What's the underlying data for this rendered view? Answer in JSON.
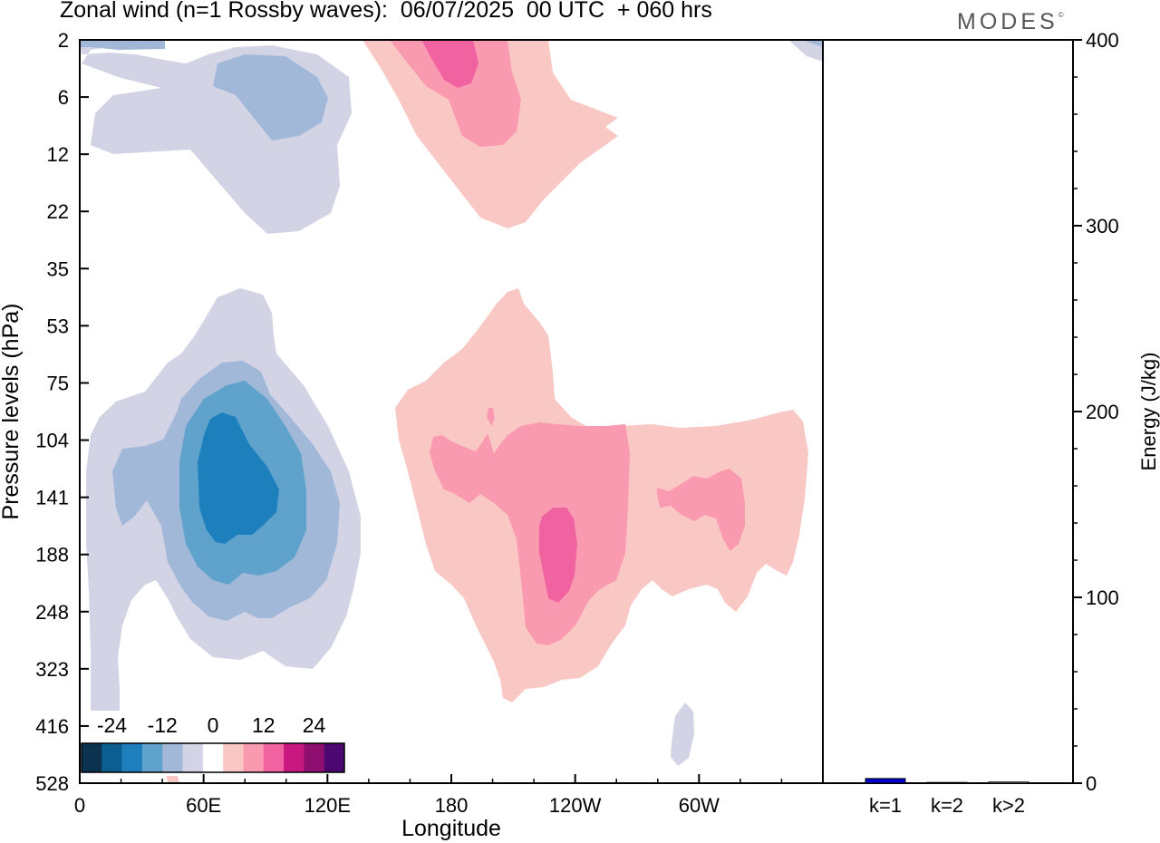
{
  "header": {
    "title": "Zonal wind (n=1 Rossby waves):  06/07/2025  00 UTC  + 060 hrs",
    "brand": "MODES",
    "brand_mark": "©"
  },
  "chart_data": [
    {
      "type": "contour",
      "xlabel": "Longitude",
      "ylabel": "Pressure levels (hPa)",
      "x_ticks": [
        "0",
        "60E",
        "120E",
        "180",
        "120W",
        "60W"
      ],
      "x_tick_degrees": [
        0,
        60,
        120,
        180,
        240,
        300
      ],
      "xlim": [
        0,
        360
      ],
      "y_ticks": [
        "2",
        "6",
        "12",
        "22",
        "35",
        "53",
        "75",
        "104",
        "141",
        "188",
        "248",
        "323",
        "416",
        "528"
      ],
      "colorbar": {
        "labels": [
          "-24",
          "-12",
          "0",
          "12",
          "24"
        ],
        "colors": [
          "#0b3350",
          "#0b5f90",
          "#1d80bc",
          "#5fa3cc",
          "#a1b8d9",
          "#d3d3e6",
          "#ffffff",
          "#fac8c4",
          "#fa9ab0",
          "#f063a0",
          "#c8177f",
          "#8f0f70",
          "#4c0870"
        ]
      }
    },
    {
      "type": "bar",
      "ylabel": "Energy (J/kg)",
      "ylim": [
        0,
        400
      ],
      "y_ticks": [
        "0",
        "100",
        "200",
        "300",
        "400"
      ],
      "categories": [
        "k=1",
        "k=2",
        "k>2"
      ],
      "values": [
        2.5,
        0.4,
        0.6
      ],
      "bar_colors": [
        "#0000cc",
        "#ffffff",
        "#ffffff"
      ]
    }
  ]
}
